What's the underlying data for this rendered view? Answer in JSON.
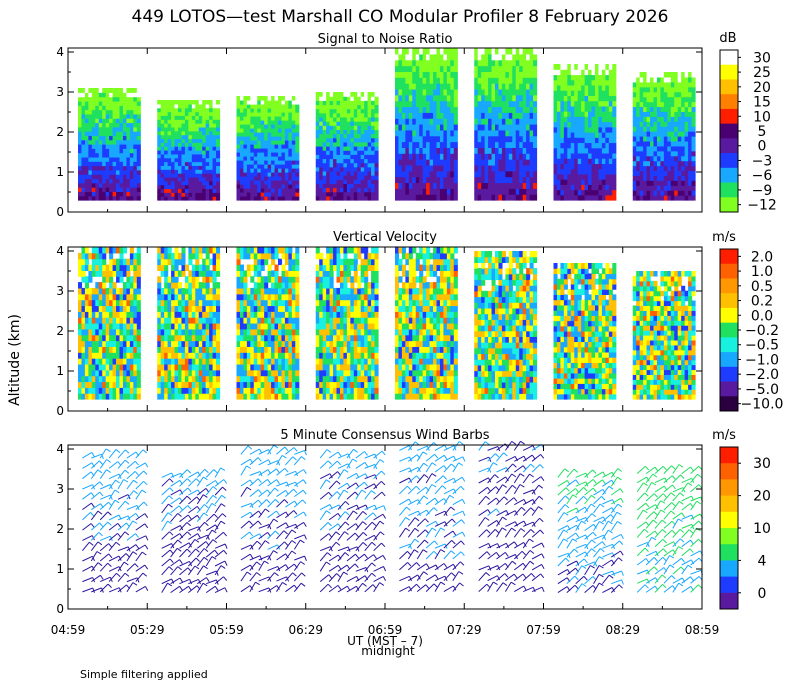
{
  "title": "449 LOTOS—test Marshall CO Modular Profiler  8 February 2026",
  "y_axis_label": "Altitude (km)",
  "x_axis_label": "UT  (MST – 7)",
  "x_axis_sublabel": "midnight",
  "footnote": "Simple filtering applied",
  "colors": {
    "axis": "#000000",
    "background": "#ffffff"
  },
  "chart_data": [
    {
      "type": "heatmap",
      "id": "snr",
      "title": "Signal to Noise Ratio",
      "unit": "dB",
      "ylim": [
        0,
        4.1
      ],
      "yticks": [
        "0",
        "1",
        "2",
        "3",
        "4"
      ],
      "xticks": [
        "04:59",
        "05:29",
        "05:59",
        "06:29",
        "06:59",
        "07:29",
        "07:59",
        "08:29",
        "08:59"
      ],
      "colorbar": {
        "labels": [
          "30",
          "25",
          "20",
          "15",
          "10",
          "5",
          "0",
          "−3",
          "−6",
          "−9",
          "−12"
        ],
        "colors": [
          "#ffffff",
          "#ffff00",
          "#ffc000",
          "#ff8000",
          "#ff1e00",
          "#4a0070",
          "#5a1aa0",
          "#1e3cff",
          "#18a8ff",
          "#20e060",
          "#80ff20"
        ]
      },
      "blocks": [
        {
          "start": "04:59",
          "end": "05:29",
          "top_km": 3.1
        },
        {
          "start": "05:29",
          "end": "05:59",
          "top_km": 2.8
        },
        {
          "start": "05:59",
          "end": "06:29",
          "top_km": 2.9
        },
        {
          "start": "06:29",
          "end": "06:59",
          "top_km": 3.0
        },
        {
          "start": "06:59",
          "end": "07:29",
          "top_km": 4.1
        },
        {
          "start": "07:29",
          "end": "07:59",
          "top_km": 4.1
        },
        {
          "start": "07:59",
          "end": "08:29",
          "top_km": 3.7
        },
        {
          "start": "08:29",
          "end": "08:59",
          "top_km": 3.5
        }
      ]
    },
    {
      "type": "heatmap",
      "id": "vv",
      "title": "Vertical Velocity",
      "unit": "m/s",
      "ylim": [
        0,
        4.1
      ],
      "yticks": [
        "0",
        "1",
        "2",
        "3",
        "4"
      ],
      "xticks": [
        "04:59",
        "05:29",
        "05:59",
        "06:29",
        "06:59",
        "07:29",
        "07:59",
        "08:29",
        "08:59"
      ],
      "colorbar": {
        "labels": [
          "2.0",
          "1.0",
          "0.5",
          "0.2",
          "0.0",
          "−0.2",
          "−0.5",
          "−1.0",
          "−2.0",
          "−5.0",
          "−10.0"
        ],
        "colors": [
          "#ff1e00",
          "#ff6000",
          "#ff9800",
          "#ffc000",
          "#ffff00",
          "#20e060",
          "#18f0e0",
          "#18a8ff",
          "#1e3cff",
          "#5a1aa0",
          "#2a0040"
        ]
      },
      "blocks": [
        {
          "start": "04:59",
          "end": "05:29",
          "top_km": 4.1
        },
        {
          "start": "05:29",
          "end": "05:59",
          "top_km": 4.1
        },
        {
          "start": "05:59",
          "end": "06:29",
          "top_km": 4.1
        },
        {
          "start": "06:29",
          "end": "06:59",
          "top_km": 4.1
        },
        {
          "start": "06:59",
          "end": "07:29",
          "top_km": 4.1
        },
        {
          "start": "07:29",
          "end": "07:59",
          "top_km": 4.0
        },
        {
          "start": "07:59",
          "end": "08:29",
          "top_km": 3.7
        },
        {
          "start": "08:29",
          "end": "08:59",
          "top_km": 3.5
        }
      ]
    },
    {
      "type": "scatter",
      "id": "wind",
      "title": "5 Minute Consensus Wind Barbs",
      "unit": "m/s",
      "ylim": [
        0,
        4.1
      ],
      "yticks": [
        "0",
        "1",
        "2",
        "3",
        "4"
      ],
      "xticks": [
        "04:59",
        "05:29",
        "05:59",
        "06:29",
        "06:59",
        "07:29",
        "07:59",
        "08:29",
        "08:59"
      ],
      "colorbar": {
        "labels": [
          "30",
          "20",
          "10",
          "4",
          "0"
        ],
        "colors": [
          "#ff1e00",
          "#ff6000",
          "#ff9800",
          "#ffc000",
          "#ffff00",
          "#80ff20",
          "#20e060",
          "#18a8ff",
          "#1e3cff",
          "#5a1aa0"
        ]
      },
      "blocks": [
        {
          "start": "04:59",
          "end": "05:29",
          "top_km": 3.9,
          "low_speed": 5,
          "high_speed": 9
        },
        {
          "start": "05:29",
          "end": "05:59",
          "top_km": 3.4,
          "low_speed": 4,
          "high_speed": 8
        },
        {
          "start": "05:59",
          "end": "06:29",
          "top_km": 4.0,
          "low_speed": 5,
          "high_speed": 9
        },
        {
          "start": "06:29",
          "end": "06:59",
          "top_km": 3.9,
          "low_speed": 5,
          "high_speed": 8
        },
        {
          "start": "06:59",
          "end": "07:29",
          "top_km": 4.1,
          "low_speed": 6,
          "high_speed": 8
        },
        {
          "start": "07:29",
          "end": "07:59",
          "top_km": 4.1,
          "low_speed": 5,
          "high_speed": 7
        },
        {
          "start": "07:59",
          "end": "08:29",
          "top_km": 3.4,
          "low_speed": 6,
          "high_speed": 11
        },
        {
          "start": "08:29",
          "end": "08:59",
          "top_km": 3.5,
          "low_speed": 9,
          "high_speed": 12
        }
      ]
    }
  ]
}
